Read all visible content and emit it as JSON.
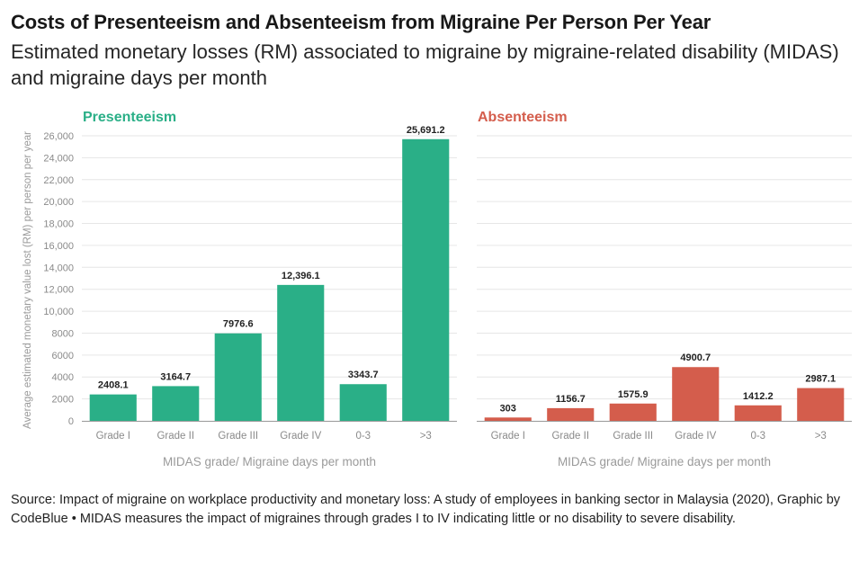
{
  "header": {
    "title": "Costs of Presenteeism and Absenteeism from Migraine Per Person Per Year",
    "subtitle": "Estimated monetary losses (RM) associated to migraine by migraine-related disability (MIDAS) and migraine days per month"
  },
  "footer": {
    "source": "Source: Impact of migraine on workplace productivity and monetary loss: A study of employees in banking sector in Malaysia (2020), Graphic by CodeBlue • MIDAS measures the impact of migraines through grades I to IV indicating little or no disability to severe disability."
  },
  "chart_data": [
    {
      "type": "bar",
      "title": "Presenteeism",
      "color": "#2aaf87",
      "categories": [
        "Grade I",
        "Grade II",
        "Grade III",
        "Grade IV",
        "0-3",
        ">3"
      ],
      "values": [
        2408.1,
        3164.7,
        7976.6,
        12396.1,
        3343.7,
        25691.2
      ],
      "data_labels": [
        "2408.1",
        "3164.7",
        "7976.6",
        "12,396.1",
        "3343.7",
        "25,691.2"
      ],
      "xlabel": "MIDAS grade/ Migraine days per month",
      "ylabel": "Average estimated monetary value lost (RM) per person per year",
      "ylim": [
        0,
        26000
      ],
      "yticks": [
        0,
        2000,
        4000,
        6000,
        8000,
        10000,
        12000,
        14000,
        16000,
        18000,
        20000,
        22000,
        24000,
        26000
      ],
      "ytick_labels": [
        "0",
        "2000",
        "4000",
        "6000",
        "8000",
        "10,000",
        "12,000",
        "14,000",
        "16,000",
        "18,000",
        "20,000",
        "22,000",
        "24,000",
        "26,000"
      ],
      "grid": true
    },
    {
      "type": "bar",
      "title": "Absenteeism",
      "color": "#d45d4c",
      "categories": [
        "Grade I",
        "Grade II",
        "Grade III",
        "Grade IV",
        "0-3",
        ">3"
      ],
      "values": [
        303,
        1156.7,
        1575.9,
        4900.7,
        1412.2,
        2987.1
      ],
      "data_labels": [
        "303",
        "1156.7",
        "1575.9",
        "4900.7",
        "1412.2",
        "2987.1"
      ],
      "xlabel": "MIDAS grade/ Migraine days per month",
      "ylim": [
        0,
        26000
      ],
      "grid": true
    }
  ]
}
